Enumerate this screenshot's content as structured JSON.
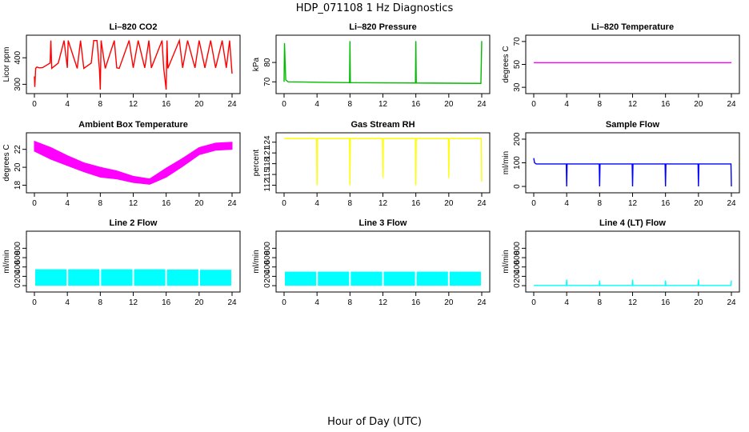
{
  "title": "HDP_071108  1 Hz Diagnostics",
  "xlabel": "Hour of Day (UTC)",
  "chart_data": [
    {
      "type": "line",
      "title": "Li–820 CO2",
      "ylabel": "Licor ppm",
      "color": "#ff0000",
      "xlim": [
        0,
        24
      ],
      "xticks": [
        0,
        4,
        8,
        12,
        16,
        20,
        24
      ],
      "ylim": [
        280,
        470
      ],
      "yticks": [
        300,
        400
      ],
      "series": [
        {
          "x": [
            0,
            0.05,
            0.15,
            0.3,
            0.6,
            1.0,
            1.9,
            2.0,
            2.1,
            2.9,
            3.6,
            4.0,
            4.1,
            5.2,
            5.6,
            6.0,
            6.9,
            7.2,
            7.6,
            7.9,
            8.0,
            8.1,
            8.6,
            9.7,
            10.0,
            10.3,
            11.5,
            12.0,
            12.6,
            13.4,
            13.9,
            14.2,
            15.5,
            15.7,
            16.0,
            16.1,
            16.2,
            17.6,
            18.0,
            18.6,
            19.5,
            20.0,
            20.7,
            21.4,
            22.0,
            22.8,
            23.3,
            23.7,
            24.0
          ],
          "y": [
            330,
            290,
            360,
            365,
            362,
            363,
            380,
            465,
            360,
            380,
            465,
            362,
            465,
            360,
            465,
            360,
            380,
            465,
            465,
            355,
            280,
            465,
            360,
            465,
            362,
            360,
            465,
            362,
            465,
            362,
            465,
            362,
            465,
            360,
            280,
            465,
            360,
            465,
            362,
            465,
            362,
            465,
            362,
            465,
            362,
            465,
            362,
            465,
            340
          ]
        }
      ]
    },
    {
      "type": "line",
      "title": "Li–820 Pressure",
      "ylabel": "kPa",
      "color": "#00bb00",
      "xlim": [
        0,
        24
      ],
      "xticks": [
        0,
        4,
        8,
        12,
        16,
        20,
        24
      ],
      "ylim": [
        66,
        92
      ],
      "yticks": [
        70,
        80
      ],
      "series": [
        {
          "x": [
            0,
            0.05,
            0.2,
            0.5,
            4,
            7.95,
            8.0,
            8.05,
            12,
            15.95,
            16.0,
            16.05,
            20,
            23.9,
            24.0
          ],
          "y": [
            70,
            90,
            71,
            70,
            69.8,
            69.6,
            91,
            69.6,
            69.5,
            69.4,
            91,
            69.4,
            69.3,
            69.2,
            91
          ]
        }
      ]
    },
    {
      "type": "line",
      "title": "Li–820 Temperature",
      "ylabel": "degrees C",
      "color": "#ff00ff",
      "xlim": [
        0,
        24
      ],
      "xticks": [
        0,
        4,
        8,
        12,
        16,
        20,
        24
      ],
      "ylim": [
        28,
        72
      ],
      "yticks": [
        30,
        50,
        70
      ],
      "series": [
        {
          "x": [
            0,
            24
          ],
          "y": [
            51.5,
            51.5
          ]
        }
      ]
    },
    {
      "type": "area",
      "title": "Ambient Box Temperature",
      "ylabel": "degrees C",
      "color": "#ff00ff",
      "xlim": [
        0,
        24
      ],
      "xticks": [
        0,
        4,
        8,
        12,
        16,
        20,
        24
      ],
      "ylim": [
        17.6,
        23.4
      ],
      "yticks": [
        18,
        20,
        22
      ],
      "series": [
        {
          "name": "upper",
          "x": [
            0,
            2,
            4,
            6,
            8,
            10,
            12,
            14,
            16,
            18,
            20,
            22,
            24
          ],
          "y": [
            22.9,
            22.2,
            21.3,
            20.5,
            20.0,
            19.6,
            19.0,
            18.7,
            19.9,
            21.0,
            22.2,
            22.7,
            22.8
          ]
        },
        {
          "name": "lower",
          "x": [
            0,
            2,
            4,
            6,
            8,
            10,
            12,
            14,
            16,
            18,
            20,
            22,
            24
          ],
          "y": [
            21.8,
            20.9,
            20.2,
            19.5,
            18.9,
            18.7,
            18.3,
            18.1,
            18.9,
            20.1,
            21.4,
            21.9,
            22.0
          ]
        }
      ]
    },
    {
      "type": "line",
      "title": "Gas Stream RH",
      "ylabel": "percent",
      "color": "#ffff00",
      "xlim": [
        0,
        24
      ],
      "xticks": [
        0,
        4,
        8,
        12,
        16,
        20,
        24
      ],
      "ylim": [
        111,
        125.5
      ],
      "yticks": [
        112,
        115,
        118,
        121,
        124
      ],
      "series": [
        {
          "x": [
            0,
            3.95,
            4.0,
            4.05,
            7.95,
            8.0,
            8.05,
            11.95,
            12.0,
            12.05,
            15.95,
            16.0,
            16.05,
            19.95,
            20.0,
            20.05,
            23.95,
            24.0
          ],
          "y": [
            125,
            125,
            112,
            125,
            125,
            112,
            125,
            125,
            114,
            125,
            125,
            112,
            125,
            125,
            114,
            125,
            125,
            113
          ]
        }
      ]
    },
    {
      "type": "line",
      "title": "Sample Flow",
      "ylabel": "ml/min",
      "color": "#0000ff",
      "xlim": [
        0,
        24
      ],
      "xticks": [
        0,
        4,
        8,
        12,
        16,
        20,
        24
      ],
      "ylim": [
        -10,
        210
      ],
      "yticks": [
        0,
        100,
        200
      ],
      "series": [
        {
          "x": [
            0,
            0.1,
            0.3,
            3.95,
            4.0,
            4.05,
            7.95,
            8.0,
            8.05,
            11.95,
            12.0,
            12.05,
            15.95,
            16.0,
            16.05,
            19.95,
            20.0,
            20.05,
            23.95,
            24.0
          ],
          "y": [
            120,
            100,
            95,
            95,
            0,
            95,
            95,
            0,
            95,
            95,
            0,
            95,
            95,
            0,
            95,
            95,
            0,
            95,
            95,
            0
          ]
        }
      ]
    },
    {
      "type": "area",
      "title": "Line 2 Flow",
      "ylabel": "ml/min",
      "color": "#00ffff",
      "xlim": [
        0,
        24
      ],
      "xticks": [
        0,
        4,
        8,
        12,
        16,
        20,
        24
      ],
      "ylim": [
        -50,
        1080
      ],
      "yticks": [
        0,
        200,
        400,
        600,
        800
      ],
      "series": [
        {
          "name": "upper",
          "x": [
            0.1,
            3.9
          ],
          "y": [
            350,
            350
          ]
        },
        {
          "name": "upper",
          "x": [
            4.1,
            7.9
          ],
          "y": [
            350,
            350
          ]
        },
        {
          "name": "upper",
          "x": [
            8.1,
            11.9
          ],
          "y": [
            350,
            350
          ]
        },
        {
          "name": "upper",
          "x": [
            12.1,
            15.9
          ],
          "y": [
            350,
            350
          ]
        },
        {
          "name": "upper",
          "x": [
            16.1,
            19.9
          ],
          "y": [
            345,
            345
          ]
        },
        {
          "name": "upper",
          "x": [
            20.1,
            23.9
          ],
          "y": [
            340,
            340
          ]
        }
      ]
    },
    {
      "type": "area",
      "title": "Line 3 Flow",
      "ylabel": "ml/min",
      "color": "#00ffff",
      "xlim": [
        0,
        24
      ],
      "xticks": [
        0,
        4,
        8,
        12,
        16,
        20,
        24
      ],
      "ylim": [
        -50,
        1080
      ],
      "yticks": [
        0,
        200,
        400,
        600,
        800
      ],
      "series": [
        {
          "name": "upper",
          "x": [
            0.1,
            3.9
          ],
          "y": [
            300,
            300
          ]
        },
        {
          "name": "upper",
          "x": [
            4.1,
            7.9
          ],
          "y": [
            300,
            300
          ]
        },
        {
          "name": "upper",
          "x": [
            8.1,
            11.9
          ],
          "y": [
            300,
            300
          ]
        },
        {
          "name": "upper",
          "x": [
            12.1,
            15.9
          ],
          "y": [
            300,
            300
          ]
        },
        {
          "name": "upper",
          "x": [
            16.1,
            19.9
          ],
          "y": [
            300,
            300
          ]
        },
        {
          "name": "upper",
          "x": [
            20.1,
            23.9
          ],
          "y": [
            300,
            300
          ]
        }
      ]
    },
    {
      "type": "line",
      "title": "Line 4 (LT) Flow",
      "ylabel": "ml/min",
      "color": "#00ffff",
      "xlim": [
        0,
        24
      ],
      "xticks": [
        0,
        4,
        8,
        12,
        16,
        20,
        24
      ],
      "ylim": [
        -50,
        1080
      ],
      "yticks": [
        0,
        200,
        400,
        600,
        800
      ],
      "series": [
        {
          "x": [
            0,
            3.95,
            4.0,
            4.05,
            7.95,
            8.0,
            8.05,
            11.95,
            12.0,
            12.05,
            15.95,
            16.0,
            16.05,
            19.95,
            20.0,
            20.05,
            23.95,
            24.0
          ],
          "y": [
            5,
            5,
            130,
            5,
            5,
            110,
            5,
            5,
            130,
            5,
            5,
            110,
            5,
            5,
            130,
            5,
            5,
            110
          ]
        }
      ]
    }
  ]
}
